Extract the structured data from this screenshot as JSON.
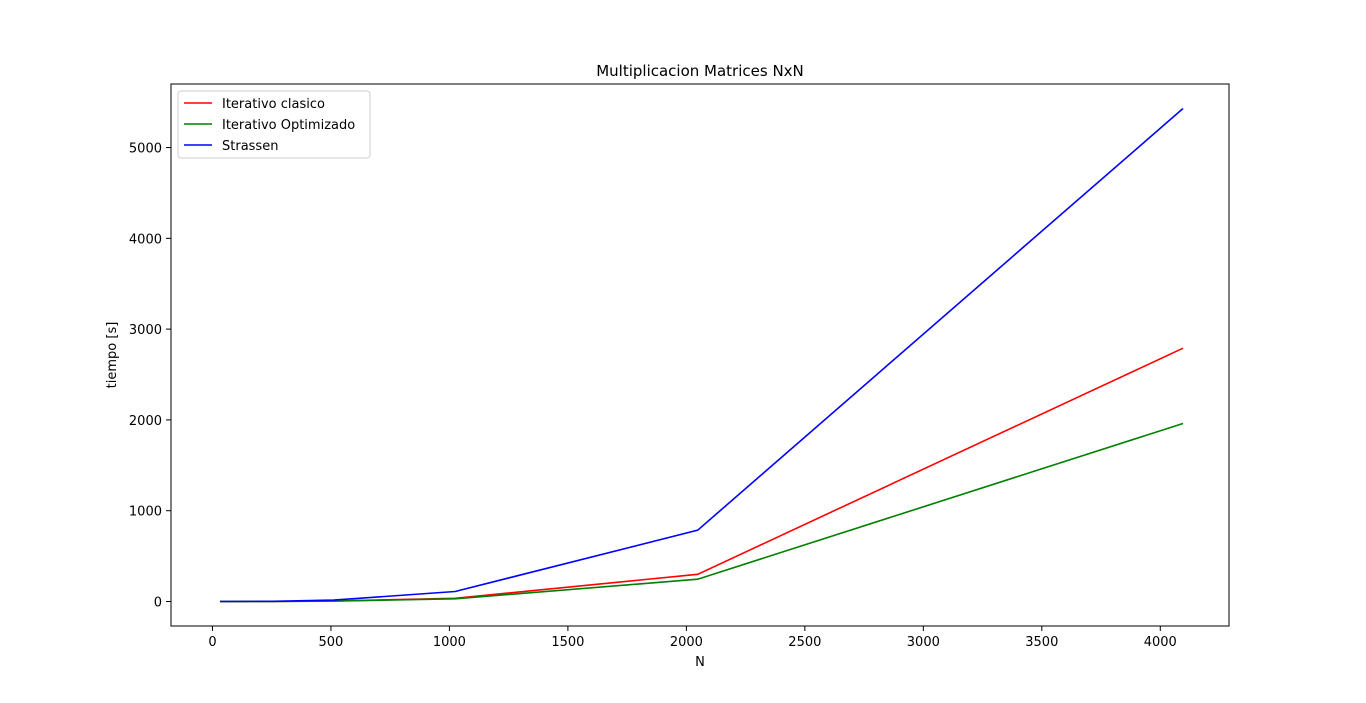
{
  "chart_data": {
    "type": "line",
    "title": "Multiplicacion Matrices NxN",
    "xlabel": "N",
    "ylabel": "tiempo [s]",
    "xlim": [
      -175,
      4290
    ],
    "ylim": [
      -270,
      5700
    ],
    "xticks": [
      0,
      500,
      1000,
      1500,
      2000,
      2500,
      3000,
      3500,
      4000
    ],
    "yticks": [
      0,
      1000,
      2000,
      3000,
      4000,
      5000
    ],
    "grid": false,
    "legend_position": "upper-left",
    "x": [
      32,
      256,
      512,
      1024,
      2048,
      4096
    ],
    "series": [
      {
        "name": "Iterativo clasico",
        "color": "#ff0000",
        "values": [
          0,
          1,
          5,
          35,
          300,
          2790
        ]
      },
      {
        "name": "Iterativo Optimizado",
        "color": "#008000",
        "values": [
          0,
          1,
          4,
          30,
          245,
          1960
        ]
      },
      {
        "name": "Strassen",
        "color": "#0000ff",
        "values": [
          0,
          2,
          15,
          110,
          785,
          5430
        ]
      }
    ]
  }
}
